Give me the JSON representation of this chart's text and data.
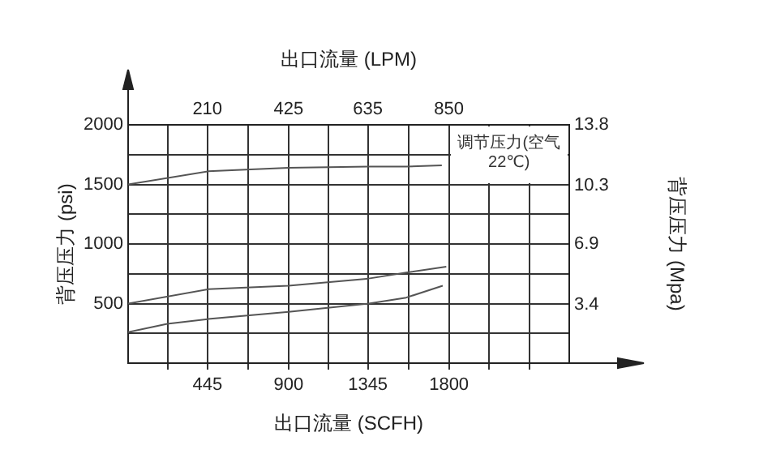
{
  "chart_data": {
    "type": "line",
    "xlabel": "出口流量 (SCFH)",
    "x2label": "出口流量 (LPM)",
    "ylabel": "背压压力 (psi)",
    "y2label": "背压压力 (Mpa)",
    "annotations": [
      "调节压力(空气22℃)"
    ],
    "xlim": [
      0,
      2475
    ],
    "xticks": [
      {
        "value": 222.5,
        "label": null
      },
      445,
      {
        "value": 672.5,
        "label": null
      },
      900,
      {
        "value": 1122.5,
        "label": null
      },
      1345,
      {
        "value": 1572.5,
        "label": null
      },
      1800,
      {
        "value": 2025,
        "label": null
      },
      {
        "value": 2250,
        "label": null
      }
    ],
    "x2lim": [
      0,
      1169
    ],
    "x2ticks": [
      210,
      425,
      635,
      850
    ],
    "ylim": [
      0,
      2000
    ],
    "yticks": [
      {
        "value": 250,
        "label": null
      },
      500,
      {
        "value": 750,
        "label": null
      },
      1000,
      {
        "value": 1250,
        "label": null
      },
      1500,
      {
        "value": 1750,
        "label": null
      },
      2000
    ],
    "y2lim": [
      0,
      13.8
    ],
    "y2ticks": [
      3.4,
      6.9,
      10.3,
      13.8
    ],
    "grid": true,
    "legend": false,
    "marker": "none",
    "line_style": "solid",
    "series": [
      {
        "color": "#555555",
        "x": [
          0,
          450,
          900,
          1350,
          1560,
          1760
        ],
        "values": [
          1500,
          1610,
          1640,
          1650,
          1650,
          1660
        ]
      },
      {
        "color": "#555555",
        "x": [
          0,
          450,
          900,
          1350,
          1560,
          1785
        ],
        "values": [
          500,
          620,
          650,
          710,
          760,
          810
        ]
      },
      {
        "color": "#555555",
        "x": [
          0,
          220,
          450,
          900,
          1350,
          1560,
          1765
        ],
        "values": [
          260,
          330,
          370,
          430,
          500,
          550,
          650
        ]
      }
    ]
  }
}
